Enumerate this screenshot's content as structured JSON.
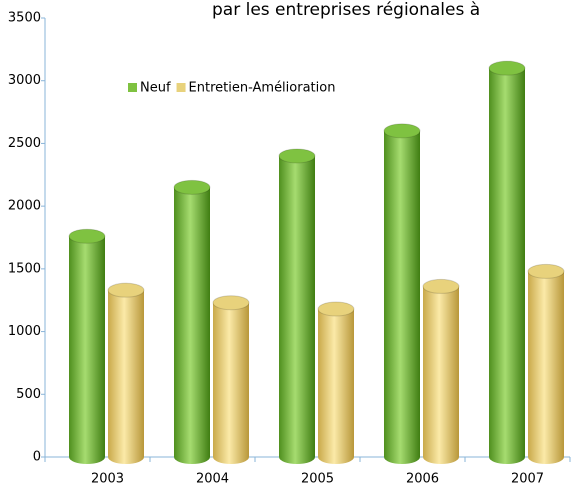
{
  "chart_data": {
    "type": "bar",
    "title": "par les entreprises régionales à",
    "categories": [
      "2003",
      "2004",
      "2005",
      "2006",
      "2007"
    ],
    "series": [
      {
        "name": "Neuf",
        "color": "#7fc241",
        "values": [
          1760,
          2150,
          2400,
          2600,
          3100
        ]
      },
      {
        "name": "Entretien-Amélioration",
        "color": "#e8d27c",
        "values": [
          1330,
          1230,
          1180,
          1360,
          1480
        ]
      }
    ],
    "ylim": [
      0,
      3500
    ],
    "yticks": [
      0,
      500,
      1000,
      1500,
      2000,
      2500,
      3000,
      3500
    ]
  }
}
